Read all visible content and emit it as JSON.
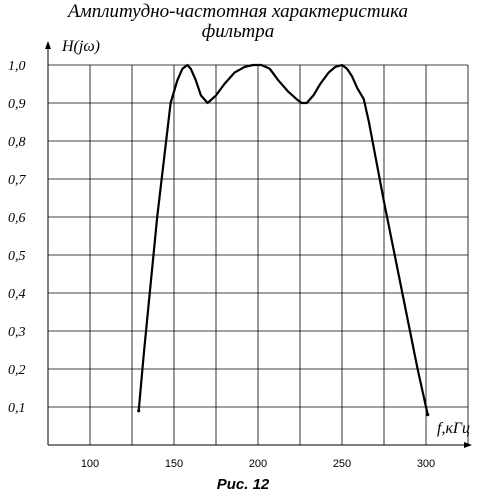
{
  "chart_data": {
    "type": "line",
    "title_line1": "Амплитудно-частотная характеристика",
    "title_line2": "фильтра",
    "ylabel": "H(jω)",
    "xlabel": "f,кГц",
    "caption": "Рис. 12",
    "xlim": [
      75,
      325
    ],
    "ylim": [
      0.0,
      1.0
    ],
    "x_ticks": [
      100,
      150,
      200,
      250,
      300
    ],
    "x_tick_labels": [
      "100",
      "150",
      "200",
      "250",
      "300"
    ],
    "y_ticks": [
      0.1,
      0.2,
      0.3,
      0.4,
      0.5,
      0.6,
      0.7,
      0.8,
      0.9,
      1.0
    ],
    "y_tick_labels": [
      "0,1",
      "0,2",
      "0,3",
      "0,4",
      "0,5",
      "0,6",
      "0,7",
      "0,8",
      "0,9",
      "1,0"
    ],
    "grid": true,
    "line_color": "#000000",
    "series": [
      {
        "x": [
          129,
          132,
          140,
          148,
          152,
          155,
          158,
          160,
          163,
          166,
          170,
          175,
          180,
          186,
          192,
          197,
          202,
          207,
          212,
          218,
          223,
          226,
          229,
          233,
          237,
          242,
          246,
          250,
          253,
          256,
          259,
          263,
          266,
          275,
          285,
          295,
          301
        ],
        "y": [
          0.09,
          0.24,
          0.6,
          0.9,
          0.96,
          0.99,
          1.0,
          0.99,
          0.96,
          0.92,
          0.9,
          0.92,
          0.95,
          0.98,
          0.995,
          1.0,
          1.0,
          0.99,
          0.96,
          0.93,
          0.91,
          0.9,
          0.9,
          0.92,
          0.95,
          0.98,
          0.995,
          1.0,
          0.99,
          0.97,
          0.94,
          0.91,
          0.85,
          0.64,
          0.42,
          0.2,
          0.08
        ]
      }
    ]
  }
}
